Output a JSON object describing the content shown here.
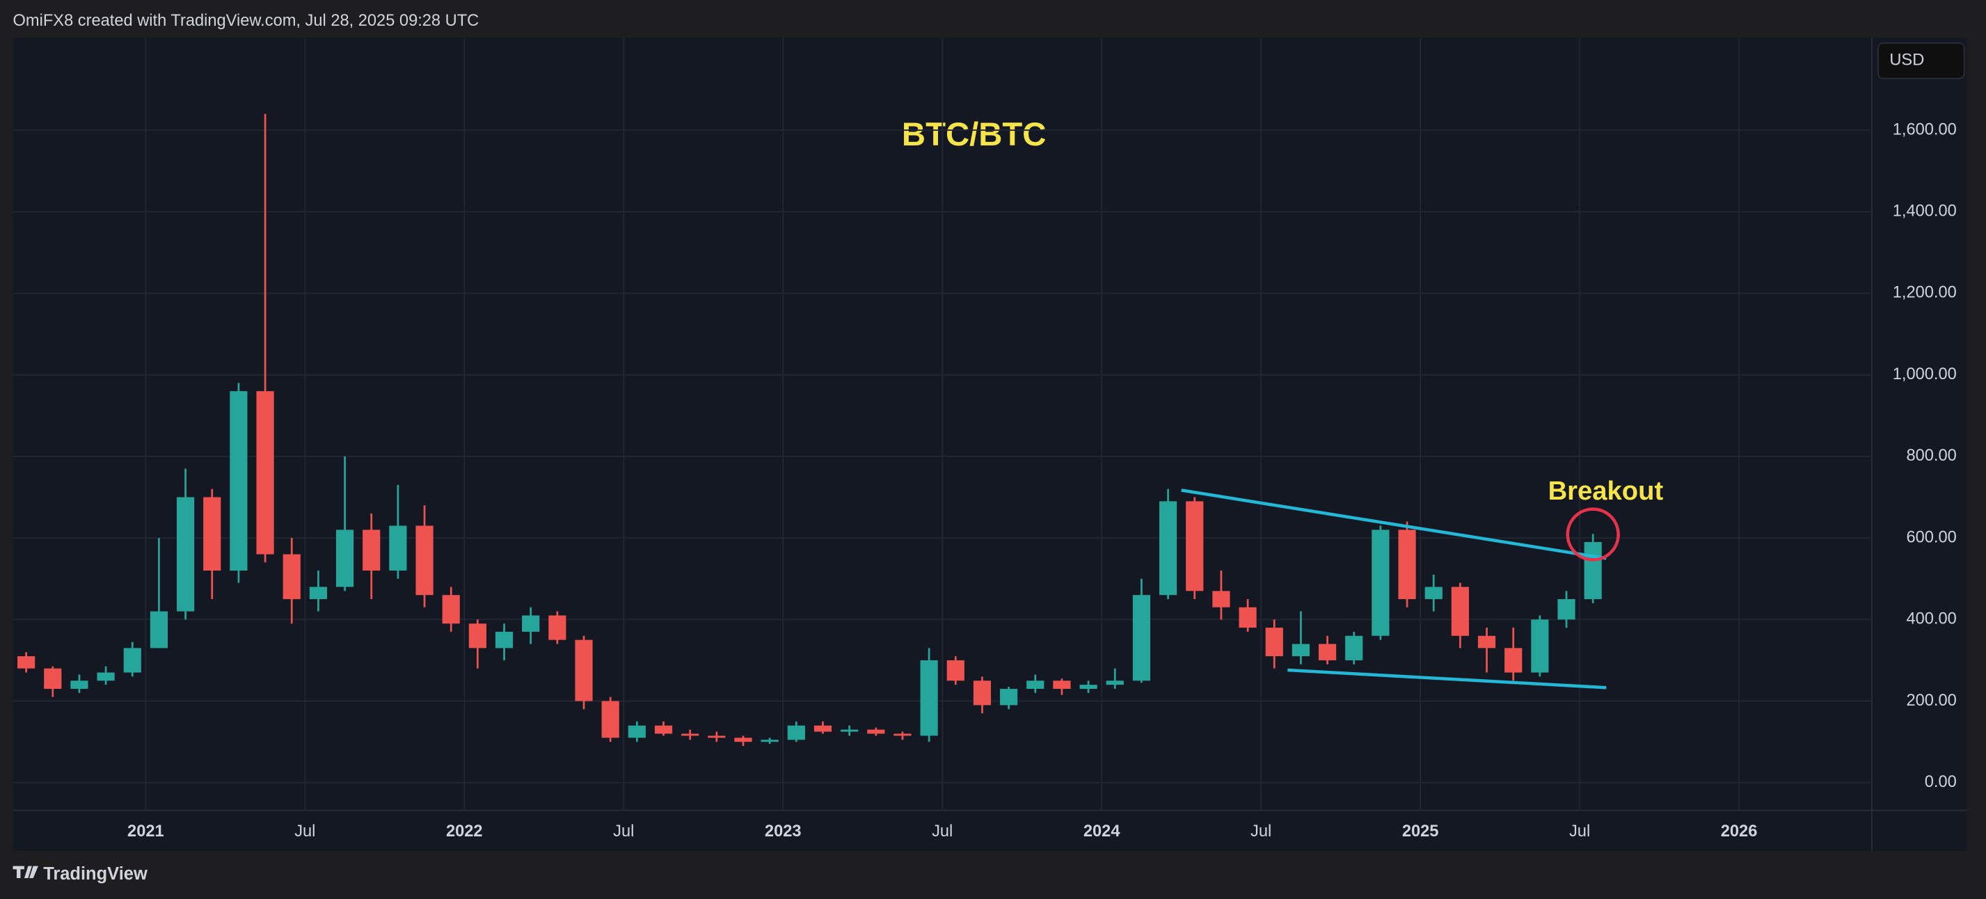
{
  "header": "OmiFX8 created with TradingView.com, Jul 28, 2025 09:28 UTC",
  "currency": "USD",
  "footer": "TradingView",
  "chart_data": {
    "type": "candlestick",
    "title": "BTC/BTC",
    "up_color": "#26a69a",
    "down_color": "#ef5350",
    "x": [
      "2020-08",
      "2020-09",
      "2020-10",
      "2020-11",
      "2020-12",
      "2021-01",
      "2021-02",
      "2021-03",
      "2021-04",
      "2021-05",
      "2021-06",
      "2021-07",
      "2021-08",
      "2021-09",
      "2021-10",
      "2021-11",
      "2021-12",
      "2022-01",
      "2022-02",
      "2022-03",
      "2022-04",
      "2022-05",
      "2022-06",
      "2022-07",
      "2022-08",
      "2022-09",
      "2022-10",
      "2022-11",
      "2022-12",
      "2023-01",
      "2023-02",
      "2023-03",
      "2023-04",
      "2023-05",
      "2023-06",
      "2023-07",
      "2023-08",
      "2023-09",
      "2023-10",
      "2023-11",
      "2023-12",
      "2024-01",
      "2024-02",
      "2024-03",
      "2024-04",
      "2024-05",
      "2024-06",
      "2024-07",
      "2024-08",
      "2024-09",
      "2024-10",
      "2024-11",
      "2024-12",
      "2025-01",
      "2025-02",
      "2025-03",
      "2025-04",
      "2025-05",
      "2025-06",
      "2025-07"
    ],
    "open": [
      310,
      280,
      230,
      250,
      270,
      330,
      420,
      700,
      520,
      960,
      560,
      450,
      480,
      620,
      520,
      630,
      460,
      390,
      330,
      370,
      410,
      350,
      200,
      110,
      140,
      120,
      115,
      110,
      100,
      105,
      140,
      125,
      130,
      120,
      115,
      300,
      250,
      190,
      230,
      250,
      230,
      240,
      250,
      460,
      690,
      470,
      430,
      380,
      310,
      340,
      300,
      360,
      620,
      450,
      480,
      360,
      330,
      270,
      400,
      450
    ],
    "high": [
      320,
      285,
      265,
      285,
      345,
      600,
      770,
      720,
      980,
      1640,
      600,
      520,
      800,
      660,
      730,
      680,
      480,
      400,
      390,
      430,
      420,
      360,
      210,
      150,
      150,
      130,
      125,
      115,
      110,
      150,
      150,
      140,
      135,
      125,
      330,
      310,
      260,
      235,
      265,
      255,
      250,
      280,
      500,
      720,
      700,
      520,
      450,
      400,
      420,
      360,
      370,
      630,
      640,
      510,
      490,
      380,
      380,
      410,
      470,
      610
    ],
    "low": [
      270,
      210,
      220,
      240,
      260,
      330,
      400,
      450,
      490,
      540,
      390,
      420,
      470,
      450,
      500,
      430,
      370,
      280,
      300,
      340,
      340,
      180,
      100,
      100,
      115,
      105,
      100,
      90,
      95,
      100,
      120,
      115,
      115,
      105,
      100,
      240,
      170,
      180,
      220,
      215,
      220,
      230,
      245,
      450,
      450,
      400,
      370,
      280,
      290,
      290,
      290,
      350,
      430,
      420,
      330,
      270,
      250,
      260,
      380,
      440
    ],
    "close": [
      280,
      230,
      250,
      270,
      330,
      420,
      700,
      520,
      960,
      560,
      450,
      480,
      620,
      520,
      630,
      460,
      390,
      330,
      370,
      410,
      350,
      200,
      110,
      140,
      120,
      115,
      110,
      100,
      105,
      140,
      125,
      130,
      120,
      115,
      300,
      250,
      190,
      230,
      250,
      230,
      240,
      250,
      460,
      690,
      470,
      430,
      380,
      310,
      340,
      300,
      360,
      620,
      450,
      480,
      360,
      330,
      270,
      400,
      450,
      590
    ],
    "xlim": [
      "2020-08",
      "2026-06"
    ],
    "xticks": [
      {
        "value": "2021-01",
        "label": "2021"
      },
      {
        "value": "2021-07",
        "label": "Jul"
      },
      {
        "value": "2022-01",
        "label": "2022"
      },
      {
        "value": "2022-07",
        "label": "Jul"
      },
      {
        "value": "2023-01",
        "label": "2023"
      },
      {
        "value": "2023-07",
        "label": "Jul"
      },
      {
        "value": "2024-01",
        "label": "2024"
      },
      {
        "value": "2024-07",
        "label": "Jul"
      },
      {
        "value": "2025-01",
        "label": "2025"
      },
      {
        "value": "2025-07",
        "label": "Jul"
      },
      {
        "value": "2026-01",
        "label": "2026"
      }
    ],
    "ylim": [
      -68,
      1826
    ],
    "yticks": [
      {
        "value": 0,
        "label": "0.00"
      },
      {
        "value": 200,
        "label": "200.00"
      },
      {
        "value": 400,
        "label": "400.00"
      },
      {
        "value": 600,
        "label": "600.00"
      },
      {
        "value": 800,
        "label": "800.00"
      },
      {
        "value": 1000,
        "label": "1,000.00"
      },
      {
        "value": 1200,
        "label": "1,200.00"
      },
      {
        "value": 1400,
        "label": "1,400.00"
      },
      {
        "value": 1600,
        "label": "1,600.00"
      }
    ],
    "grid": true,
    "trendlines": [
      {
        "color": "#22b8d6",
        "x": [
          "2024-04",
          "2025-08"
        ],
        "y": [
          717,
          550
        ]
      },
      {
        "color": "#22b8d6",
        "x": [
          "2024-08",
          "2025-08"
        ],
        "y": [
          276,
          233
        ]
      }
    ],
    "annotation": "Breakout"
  }
}
